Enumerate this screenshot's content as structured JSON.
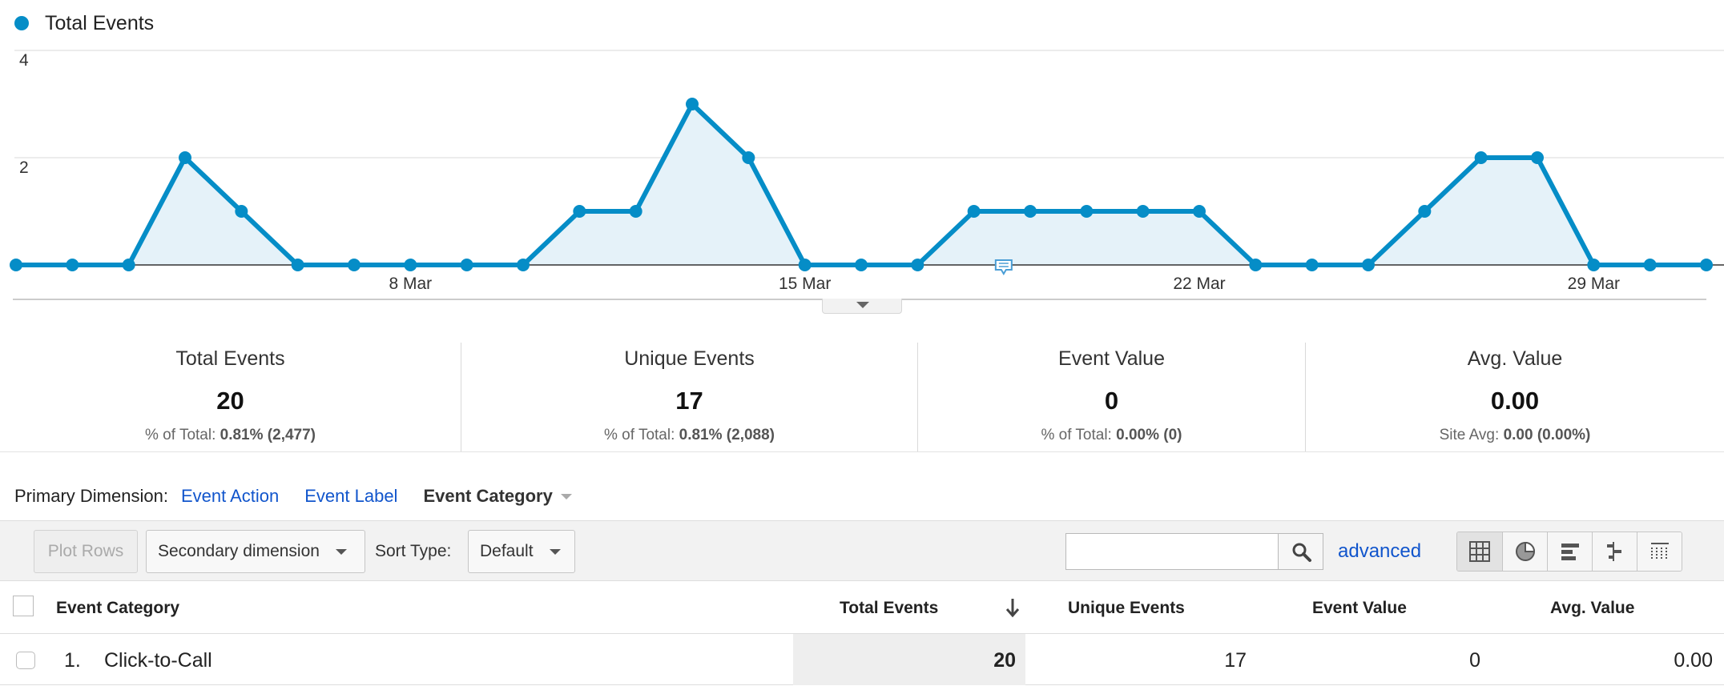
{
  "chart": {
    "legend": "Total Events",
    "series_color": "#058dc7",
    "y_ticks": [
      "4",
      "2"
    ],
    "x_ticks": [
      "8 Mar",
      "15 Mar",
      "22 Mar",
      "29 Mar"
    ]
  },
  "chart_data": {
    "type": "line",
    "title": "",
    "xlabel": "",
    "ylabel": "",
    "legend_position": "top-left",
    "grid": true,
    "ylim": [
      0,
      4
    ],
    "x": [
      "1 Mar",
      "2 Mar",
      "3 Mar",
      "4 Mar",
      "5 Mar",
      "6 Mar",
      "7 Mar",
      "8 Mar",
      "9 Mar",
      "10 Mar",
      "11 Mar",
      "12 Mar",
      "13 Mar",
      "14 Mar",
      "15 Mar",
      "16 Mar",
      "17 Mar",
      "18 Mar",
      "19 Mar",
      "20 Mar",
      "21 Mar",
      "22 Mar",
      "23 Mar",
      "24 Mar",
      "25 Mar",
      "26 Mar",
      "27 Mar",
      "28 Mar",
      "29 Mar",
      "30 Mar",
      "31 Mar"
    ],
    "series": [
      {
        "name": "Total Events",
        "values": [
          0,
          0,
          0,
          2,
          1,
          0,
          0,
          0,
          0,
          0,
          1,
          1,
          3,
          2,
          0,
          0,
          0,
          1,
          1,
          1,
          1,
          1,
          0,
          0,
          0,
          1,
          2,
          2,
          0,
          0,
          0
        ]
      }
    ]
  },
  "summary": [
    {
      "title": "Total Events",
      "value": "20",
      "sub_label": "% of Total:",
      "sub_value": "0.81%",
      "sub_paren": "(2,477)"
    },
    {
      "title": "Unique Events",
      "value": "17",
      "sub_label": "% of Total:",
      "sub_value": "0.81%",
      "sub_paren": "(2,088)"
    },
    {
      "title": "Event Value",
      "value": "0",
      "sub_label": "% of Total:",
      "sub_value": "0.00%",
      "sub_paren": "(0)"
    },
    {
      "title": "Avg. Value",
      "value": "0.00",
      "sub_label": "Site Avg:",
      "sub_value": "0.00",
      "sub_paren": "(0.00%)"
    }
  ],
  "dimension": {
    "label": "Primary Dimension:",
    "links": [
      "Event Action",
      "Event Label"
    ],
    "active": "Event Category"
  },
  "toolbar": {
    "plot_rows": "Plot Rows",
    "secondary": "Secondary dimension",
    "sort_label": "Sort Type:",
    "sort_value": "Default",
    "search_value": "",
    "advanced": "advanced",
    "view_icons": [
      "table-view-icon",
      "pie-view-icon",
      "performance-view-icon",
      "comparison-view-icon",
      "pivot-view-icon"
    ]
  },
  "table": {
    "headers": [
      "Event Category",
      "Total Events",
      "Unique Events",
      "Event Value",
      "Avg. Value"
    ],
    "rows": [
      {
        "index": "1.",
        "category": "Click-to-Call",
        "total": "20",
        "unique": "17",
        "value": "0",
        "avg": "0.00"
      }
    ]
  }
}
